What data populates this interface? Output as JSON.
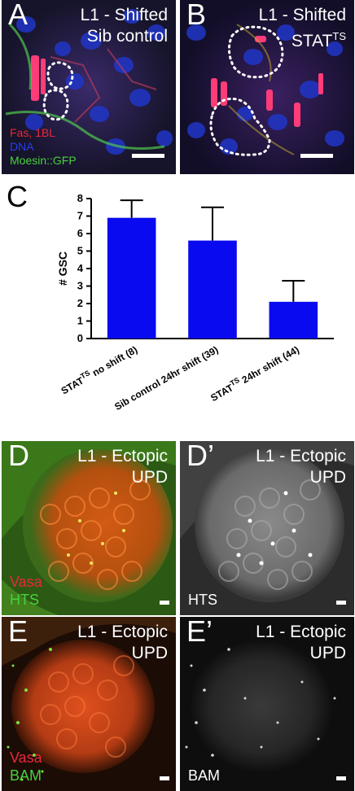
{
  "panels": {
    "A": {
      "letter": "A",
      "title_line1": "L1 - Shifted",
      "title_line2": "Sib control",
      "legend": [
        {
          "text": "Fas, 1BL",
          "color": "#e8283a"
        },
        {
          "text": "DNA",
          "color": "#2a3cf0"
        },
        {
          "text": "Moesin::GFP",
          "color": "#46d23c"
        }
      ]
    },
    "B": {
      "letter": "B",
      "title_line1": "L1 - Shifted",
      "title_line2_base": "STAT",
      "title_line2_sup": "TS"
    },
    "D": {
      "letter": "D",
      "title_line1": "L1 - Ectopic",
      "title_line2": "UPD",
      "legend": [
        {
          "text": "Vasa",
          "color": "#e8283a"
        },
        {
          "text": "HTS",
          "color": "#46d23c"
        }
      ]
    },
    "D2": {
      "letter": "D’",
      "title_line1": "L1 - Ectopic",
      "title_line2": "UPD",
      "legend": [
        {
          "text": "HTS",
          "color": "#ffffff"
        }
      ]
    },
    "E": {
      "letter": "E",
      "title_line1": "L1 - Ectopic",
      "title_line2": "UPD",
      "legend": [
        {
          "text": "Vasa",
          "color": "#e8283a"
        },
        {
          "text": "BAM",
          "color": "#46d23c"
        }
      ]
    },
    "E2": {
      "letter": "E’",
      "title_line1": "L1 - Ectopic",
      "title_line2": "UPD",
      "legend": [
        {
          "text": "BAM",
          "color": "#ffffff"
        }
      ]
    }
  },
  "chart_panel_letter": "C",
  "chart_data": {
    "type": "bar",
    "ylabel": "# GSC",
    "ylim": [
      0,
      8
    ],
    "yticks": [
      "0",
      "1",
      "2",
      "3",
      "4",
      "5",
      "6",
      "7",
      "8"
    ],
    "bar_color": "#0a0af0",
    "categories": [
      {
        "base": "STAT",
        "sup": "TS",
        "rest": " no shift (8)"
      },
      {
        "base": "Sib control 24hr shift (39)",
        "sup": "",
        "rest": ""
      },
      {
        "base": "STAT",
        "sup": "TS",
        "rest": " 24hr shift (44)"
      }
    ],
    "values": [
      6.9,
      5.6,
      2.1
    ],
    "errors": [
      1.0,
      1.9,
      1.2
    ]
  }
}
